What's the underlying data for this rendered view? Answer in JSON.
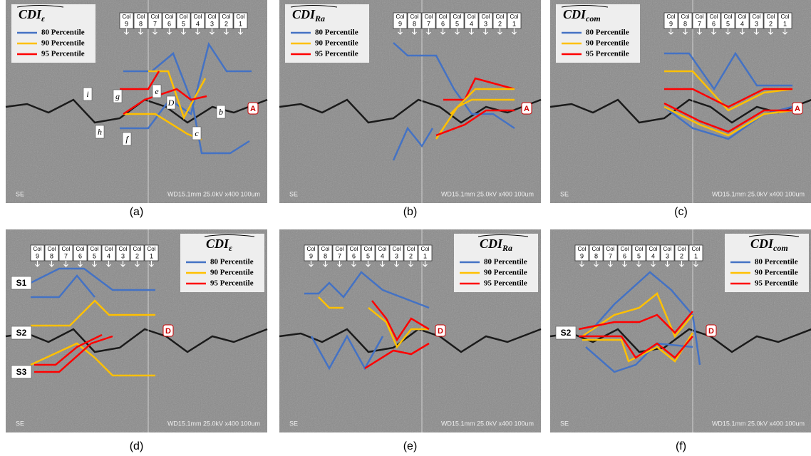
{
  "figure": {
    "column_prefix": "Col",
    "columns": [
      "9",
      "8",
      "7",
      "6",
      "5",
      "4",
      "3",
      "2",
      "1"
    ],
    "footer_left": "SE",
    "footer_right": "WD15.1mm 25.0kV x400 100um",
    "legend_entries": [
      "80 Percentile",
      "90 Percentile",
      "95 Percentile"
    ]
  },
  "panels": [
    {
      "label": "(a)",
      "metric": "CDI",
      "subscript": "ε",
      "marker": "A",
      "annotations": [
        "i",
        "g",
        "e",
        "D",
        "b",
        "h",
        "f",
        "c"
      ]
    },
    {
      "label": "(b)",
      "metric": "CDI",
      "subscript": "Ra",
      "marker": "A"
    },
    {
      "label": "(c)",
      "metric": "CDI",
      "subscript": "com",
      "marker": "A"
    },
    {
      "label": "(d)",
      "metric": "CDI",
      "subscript": "ε",
      "marker": "D",
      "annotations": [
        "S1",
        "S2",
        "S3"
      ]
    },
    {
      "label": "(e)",
      "metric": "CDI",
      "subscript": "Ra",
      "marker": "D"
    },
    {
      "label": "(f)",
      "metric": "CDI",
      "subscript": "com",
      "marker": "D",
      "annotations": [
        "S2"
      ]
    }
  ]
}
